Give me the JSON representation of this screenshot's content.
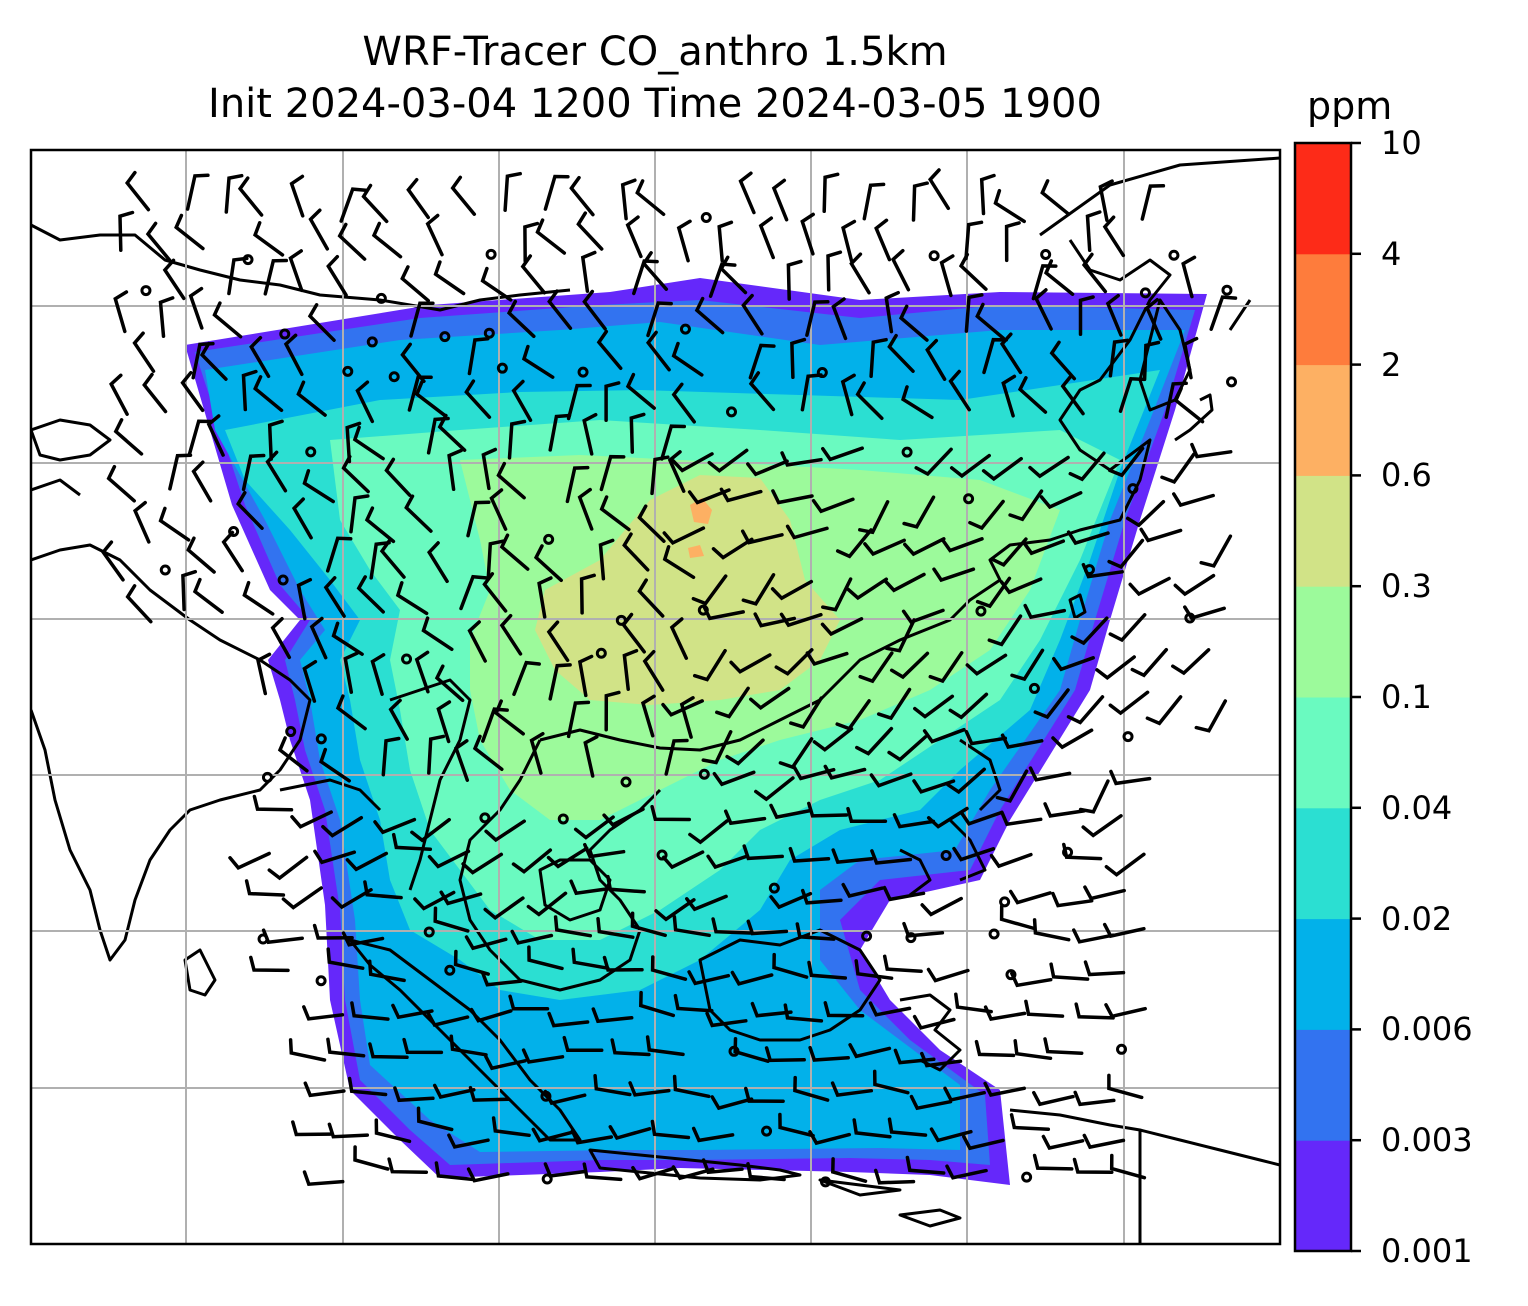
{
  "title": {
    "line1": "WRF-Tracer CO_anthro 1.5km",
    "line2": "Init 2024-03-04 1200 Time 2024-03-05 1900"
  },
  "colorbar": {
    "unit": "ppm",
    "levels": [
      "0.001",
      "0.003",
      "0.006",
      "0.02",
      "0.04",
      "0.1",
      "0.3",
      "0.6",
      "2",
      "4",
      "10"
    ],
    "colors": [
      "#6528fa",
      "#3273f0",
      "#02b1ea",
      "#2bdfd2",
      "#6afac0",
      "#9cfa9b",
      "#d1e387",
      "#fdb063",
      "#fe7c3c",
      "#fd2b18"
    ]
  },
  "map_style": {
    "coastline_color": "#000000",
    "gridline_color": "#b0b0b0",
    "wind_barb_color": "#000000"
  }
}
